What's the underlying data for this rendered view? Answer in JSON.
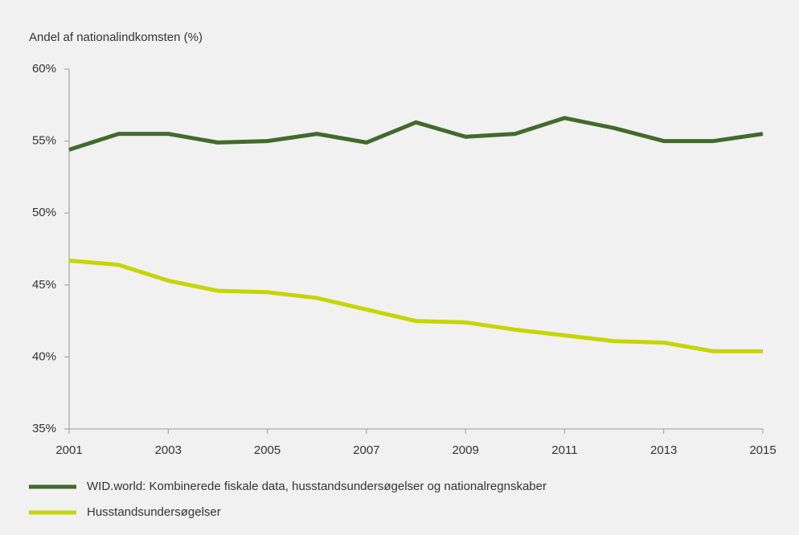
{
  "chart_data": {
    "type": "line",
    "y_label": "Andel af nationalindkomsten (%)",
    "x": [
      2001,
      2002,
      2003,
      2004,
      2005,
      2006,
      2007,
      2008,
      2009,
      2010,
      2011,
      2012,
      2013,
      2014,
      2015
    ],
    "series": [
      {
        "name": "WID.world: Kombinerede fiskale data, husstandsundersøgelser og nationalregnskaber",
        "color": "#416b2b",
        "values": [
          54.4,
          55.5,
          55.5,
          54.9,
          55.0,
          55.5,
          54.9,
          56.3,
          55.3,
          55.5,
          56.6,
          55.9,
          55.0,
          55.0,
          55.5
        ]
      },
      {
        "name": "Husstandsundersøgelser",
        "color": "#c6d500",
        "values": [
          46.7,
          46.4,
          45.3,
          44.6,
          44.5,
          44.1,
          43.3,
          42.5,
          42.4,
          41.9,
          41.5,
          41.1,
          41.0,
          40.4,
          40.4
        ]
      }
    ],
    "xlim": [
      2001,
      2015
    ],
    "xticks": [
      2001,
      2003,
      2005,
      2007,
      2009,
      2011,
      2013,
      2015
    ],
    "ylim": [
      35,
      60
    ],
    "yticks": [
      {
        "value": 35,
        "label": "35%"
      },
      {
        "value": 40,
        "label": "40%"
      },
      {
        "value": 45,
        "label": "45%"
      },
      {
        "value": 50,
        "label": "50%"
      },
      {
        "value": 55,
        "label": "55%"
      },
      {
        "value": 60,
        "label": "60%"
      }
    ],
    "grid": false
  }
}
